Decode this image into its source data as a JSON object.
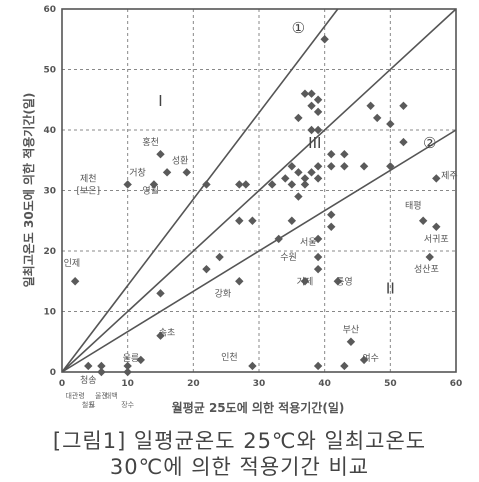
{
  "chart_data": {
    "type": "scatter",
    "xlabel": "월평균 25도에 의한 적용기간(일)",
    "ylabel": "일최고온도 30도에 의한 적용기간(일)",
    "xlim": [
      0,
      60
    ],
    "ylim": [
      0,
      60
    ],
    "x_ticks": [
      0,
      10,
      20,
      30,
      40,
      50,
      60
    ],
    "y_ticks": [
      0,
      10,
      20,
      30,
      40,
      50,
      60
    ],
    "grid": true,
    "regions": [
      {
        "label": "①",
        "x": 36,
        "y": 56
      },
      {
        "label": "I",
        "x": 15,
        "y": 44
      },
      {
        "label": "III",
        "x": 38.5,
        "y": 37
      },
      {
        "label": "②",
        "x": 56,
        "y": 37
      },
      {
        "label": "II",
        "x": 50,
        "y": 13
      }
    ],
    "lines": [
      {
        "name": "line-1",
        "x": [
          0,
          42
        ],
        "y": [
          0,
          60
        ]
      },
      {
        "name": "line-3",
        "x": [
          0,
          60
        ],
        "y": [
          0,
          60
        ]
      },
      {
        "name": "line-2",
        "x": [
          0,
          60
        ],
        "y": [
          0,
          40
        ]
      }
    ],
    "points": [
      {
        "x": 2,
        "y": 15
      },
      {
        "x": 4,
        "y": 1
      },
      {
        "x": 6,
        "y": 0
      },
      {
        "x": 6,
        "y": 1
      },
      {
        "x": 10,
        "y": 1
      },
      {
        "x": 10,
        "y": 0
      },
      {
        "x": 10,
        "y": 31
      },
      {
        "x": 12,
        "y": 2
      },
      {
        "x": 14,
        "y": 31
      },
      {
        "x": 15,
        "y": 36
      },
      {
        "x": 16,
        "y": 33
      },
      {
        "x": 15,
        "y": 13
      },
      {
        "x": 15,
        "y": 6
      },
      {
        "x": 19,
        "y": 33
      },
      {
        "x": 22,
        "y": 17
      },
      {
        "x": 24,
        "y": 19
      },
      {
        "x": 22,
        "y": 31
      },
      {
        "x": 27,
        "y": 31
      },
      {
        "x": 28,
        "y": 31
      },
      {
        "x": 27,
        "y": 15
      },
      {
        "x": 27,
        "y": 25
      },
      {
        "x": 29,
        "y": 25
      },
      {
        "x": 29,
        "y": 1
      },
      {
        "x": 32,
        "y": 31
      },
      {
        "x": 33,
        "y": 22
      },
      {
        "x": 34,
        "y": 32
      },
      {
        "x": 35,
        "y": 31
      },
      {
        "x": 35,
        "y": 34
      },
      {
        "x": 35,
        "y": 25
      },
      {
        "x": 36,
        "y": 33
      },
      {
        "x": 36,
        "y": 29
      },
      {
        "x": 37,
        "y": 32
      },
      {
        "x": 37,
        "y": 31
      },
      {
        "x": 36,
        "y": 42
      },
      {
        "x": 37,
        "y": 46
      },
      {
        "x": 38,
        "y": 44
      },
      {
        "x": 38,
        "y": 46
      },
      {
        "x": 39,
        "y": 45
      },
      {
        "x": 39,
        "y": 43
      },
      {
        "x": 38,
        "y": 40
      },
      {
        "x": 39,
        "y": 40
      },
      {
        "x": 38,
        "y": 33
      },
      {
        "x": 39,
        "y": 32
      },
      {
        "x": 39,
        "y": 34
      },
      {
        "x": 39,
        "y": 22
      },
      {
        "x": 39,
        "y": 19
      },
      {
        "x": 39,
        "y": 17
      },
      {
        "x": 39,
        "y": 1
      },
      {
        "x": 37,
        "y": 15
      },
      {
        "x": 40,
        "y": 55
      },
      {
        "x": 41,
        "y": 36
      },
      {
        "x": 41,
        "y": 34
      },
      {
        "x": 41,
        "y": 26
      },
      {
        "x": 41,
        "y": 24
      },
      {
        "x": 42,
        "y": 15
      },
      {
        "x": 43,
        "y": 36
      },
      {
        "x": 43,
        "y": 34
      },
      {
        "x": 43,
        "y": 1
      },
      {
        "x": 44,
        "y": 5
      },
      {
        "x": 46,
        "y": 34
      },
      {
        "x": 46,
        "y": 2
      },
      {
        "x": 47,
        "y": 44
      },
      {
        "x": 48,
        "y": 42
      },
      {
        "x": 50,
        "y": 34
      },
      {
        "x": 50,
        "y": 41
      },
      {
        "x": 52,
        "y": 38
      },
      {
        "x": 52,
        "y": 44
      },
      {
        "x": 55,
        "y": 25
      },
      {
        "x": 57,
        "y": 24
      },
      {
        "x": 57,
        "y": 32
      },
      {
        "x": 56,
        "y": 19
      }
    ],
    "point_labels": [
      {
        "text": "인제",
        "x": 1.5,
        "y": 17.5
      },
      {
        "text": "청송",
        "x": 4,
        "y": -1.8
      },
      {
        "text": "울릉",
        "x": 10.5,
        "y": 1.8
      },
      {
        "text": "홍천",
        "x": 13.5,
        "y": 37.5
      },
      {
        "text": "성환",
        "x": 18,
        "y": 34.5
      },
      {
        "text": "거창",
        "x": 11.5,
        "y": 32.5
      },
      {
        "text": "영월",
        "x": 13.5,
        "y": 29.5
      },
      {
        "text": "제천",
        "x": 4,
        "y": 31.5
      },
      {
        "text": "[보은]",
        "x": 4,
        "y": 29.5
      },
      {
        "text": "강화",
        "x": 24.5,
        "y": 12.5
      },
      {
        "text": "속초",
        "x": 16,
        "y": 6
      },
      {
        "text": "인천",
        "x": 25.5,
        "y": 2
      },
      {
        "text": "서울",
        "x": 37.5,
        "y": 21
      },
      {
        "text": "수원",
        "x": 34.5,
        "y": 18.5
      },
      {
        "text": "거제",
        "x": 37,
        "y": 14.5
      },
      {
        "text": "통영",
        "x": 43,
        "y": 14.5
      },
      {
        "text": "부산",
        "x": 44,
        "y": 6.5
      },
      {
        "text": "여수",
        "x": 47,
        "y": 1.8
      },
      {
        "text": "제주",
        "x": 59,
        "y": 32
      },
      {
        "text": "태평",
        "x": 53.5,
        "y": 27
      },
      {
        "text": "서귀포",
        "x": 57,
        "y": 21.5
      },
      {
        "text": "성산포",
        "x": 55.5,
        "y": 16.5
      }
    ],
    "bottom_labels": [
      {
        "text": "대관령",
        "x": 2
      },
      {
        "text": "철원",
        "x": 4
      },
      {
        "text": "울진",
        "x": 6
      },
      {
        "text": "도",
        "x": 4.6
      },
      {
        "text": "태백",
        "x": 7.5
      },
      {
        "text": "장수",
        "x": 10
      }
    ]
  },
  "caption": {
    "line1": "[그림1] 일평균온도 25℃와 일최고온도",
    "line2": "30℃에 의한 적용기간 비교"
  }
}
